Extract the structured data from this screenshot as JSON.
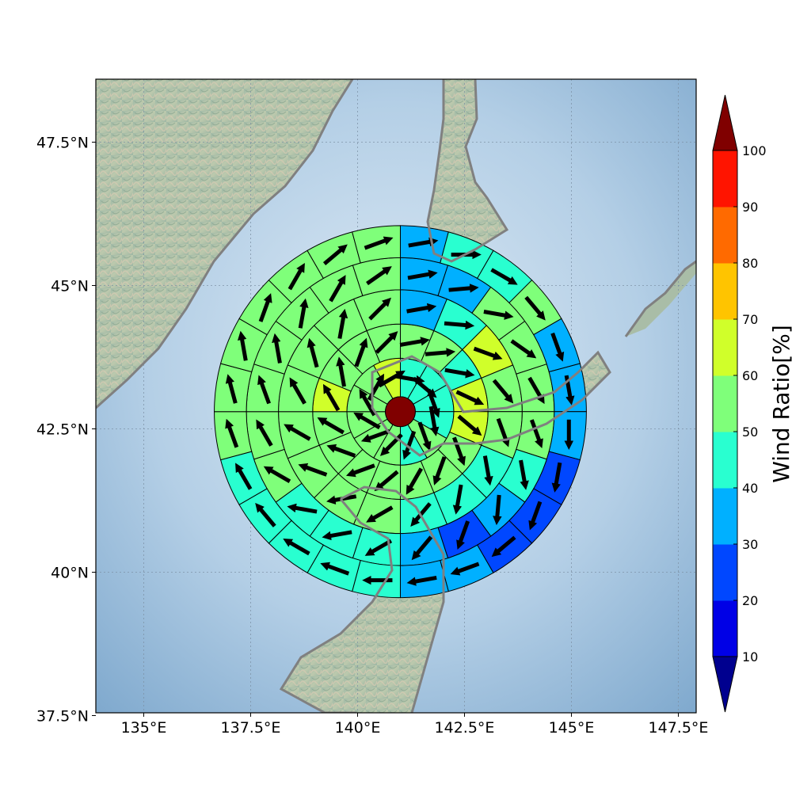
{
  "map": {
    "lon_ticks": [
      "135°E",
      "137.5°E",
      "140°E",
      "142.5°E",
      "145°E",
      "147.5°E"
    ],
    "lat_ticks": [
      "47.5°N",
      "45°N",
      "42.5°N",
      "40°N",
      "37.5°N"
    ],
    "lon_values": [
      135,
      137.5,
      140,
      142.5,
      145,
      147.5
    ],
    "lat_values": [
      47.5,
      45,
      42.5,
      40,
      37.5
    ]
  },
  "colorbar": {
    "label": "Wind Ratio[%]",
    "ticks": [
      "10",
      "20",
      "30",
      "40",
      "50",
      "60",
      "70",
      "80",
      "90",
      "100"
    ],
    "levels": [
      10,
      20,
      30,
      40,
      50,
      60,
      70,
      80,
      90,
      100
    ],
    "colors": [
      "#0000e6",
      "#0047ff",
      "#00b0ff",
      "#29ffd0",
      "#7fff7a",
      "#d0ff2a",
      "#ffc400",
      "#ff6a00",
      "#ff1400"
    ],
    "under_color": "#00008f",
    "over_color": "#800000"
  },
  "chart_data": {
    "type": "polar-grid",
    "center": {
      "lon": 141.0,
      "lat": 42.8,
      "value_color": "#800000"
    },
    "ring_edges_deg": [
      0.35,
      1.25,
      2.05,
      2.85,
      3.6,
      4.35
    ],
    "rings": [
      {
        "ratio": [
          40,
          40,
          40,
          40,
          50,
          40,
          50,
          50,
          50,
          50,
          50,
          60
        ]
      },
      {
        "ratio": [
          50,
          50,
          40,
          60,
          60,
          50,
          50,
          50,
          50,
          50,
          50,
          50,
          60,
          50,
          50,
          50
        ]
      },
      {
        "ratio": [
          30,
          40,
          60,
          50,
          50,
          40,
          40,
          40,
          50,
          50,
          50,
          50,
          50,
          50,
          50,
          50
        ]
      },
      {
        "ratio": [
          30,
          30,
          50,
          50,
          50,
          50,
          40,
          30,
          20,
          30,
          40,
          40,
          40,
          50,
          50,
          50,
          50,
          50,
          50,
          50
        ]
      },
      {
        "ratio": [
          30,
          40,
          40,
          50,
          30,
          30,
          30,
          20,
          20,
          20,
          30,
          30,
          40,
          40,
          40,
          40,
          40,
          50,
          50,
          50,
          50,
          50,
          50,
          50
        ]
      }
    ],
    "wind_dir_deg": [
      [
        100,
        130,
        160,
        170,
        160,
        200,
        225,
        250,
        300,
        330,
        30,
        60
      ],
      [
        80,
        85,
        100,
        115,
        130,
        160,
        200,
        210,
        230,
        250,
        290,
        300,
        330,
        350,
        20,
        45
      ],
      [
        80,
        95,
        110,
        140,
        160,
        170,
        190,
        220,
        240,
        260,
        290,
        300,
        330,
        345,
        10,
        45
      ],
      [
        80,
        85,
        100,
        125,
        150,
        160,
        170,
        185,
        200,
        220,
        240,
        260,
        280,
        300,
        330,
        340,
        350,
        10,
        30,
        55
      ],
      [
        80,
        90,
        120,
        140,
        160,
        170,
        180,
        190,
        200,
        230,
        250,
        260,
        270,
        290,
        300,
        320,
        330,
        340,
        345,
        350,
        20,
        30,
        50,
        70
      ]
    ]
  }
}
